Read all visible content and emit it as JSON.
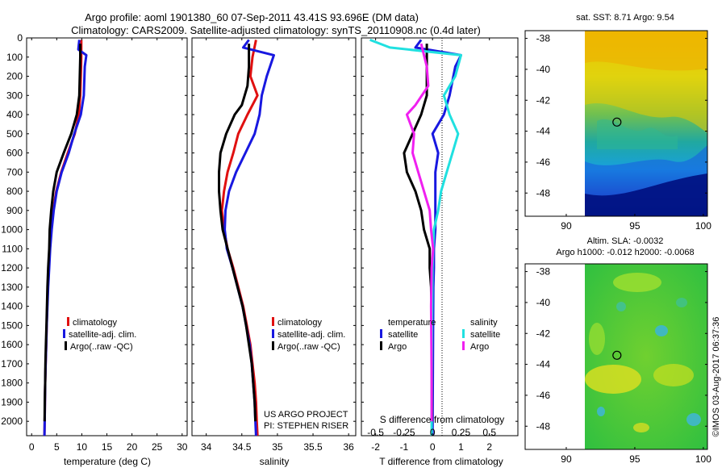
{
  "title_line1": "Argo profile: aoml 1901380_60 07-Sep-2011 43.41S 93.696E (DM data)",
  "title_line2": "Climatology: CARS2009. Satellite-adjusted climatology: synTS_20110908.nc (0.4d later)",
  "colors": {
    "clim": "#e01010",
    "sat": "#1818e0",
    "argo": "#000000",
    "sat_s": "#20e0e0",
    "argo_s": "#f020f0"
  },
  "legend": {
    "clim": "climatology",
    "sat": "satellite-adj. clim.",
    "argo": "Argo(..raw -QC)"
  },
  "diff_legend": {
    "temperature": "temperature",
    "salinity": "salinity",
    "sat": "satellite",
    "argo": "Argo",
    "sat_s": "satellite",
    "argo_s": "Argo"
  },
  "project": {
    "line1": "US ARGO PROJECT",
    "line2": "PI: STEPHEN RISER"
  },
  "s_diff_title": "S difference from climatology",
  "copyright": "©IMOS 03-Aug-2017 06:37:36",
  "map1_title": "sat. SST: 8.71  Argo: 9.54",
  "map2_title1": "Altim. SLA: -0.0032",
  "map2_title2": "Argo h1000: -0.012 h2000: -0.0068",
  "chart_data": [
    {
      "type": "line",
      "xlabel": "temperature (deg C)",
      "ylabel": "depth",
      "xlim": [
        -1,
        31
      ],
      "ylim": [
        2075,
        0
      ],
      "xticks": [
        0,
        5,
        10,
        15,
        20,
        25,
        30
      ],
      "xtick_labels": [
        "0",
        "5",
        "10",
        "15",
        "20",
        "25",
        "30"
      ],
      "yticks": [
        0,
        100,
        200,
        300,
        400,
        500,
        600,
        700,
        800,
        900,
        1000,
        1100,
        1200,
        1300,
        1400,
        1500,
        1600,
        1700,
        1800,
        1900,
        2000
      ],
      "series": [
        {
          "name": "climatology",
          "color": "clim",
          "points": [
            [
              9.9,
              10
            ],
            [
              9.9,
              100
            ],
            [
              9.8,
              200
            ],
            [
              9.7,
              300
            ],
            [
              9.4,
              400
            ],
            [
              8.6,
              500
            ],
            [
              7.2,
              600
            ],
            [
              5.9,
              700
            ],
            [
              4.9,
              800
            ],
            [
              4.3,
              900
            ],
            [
              3.9,
              1000
            ],
            [
              3.6,
              1100
            ],
            [
              3.4,
              1200
            ],
            [
              3.25,
              1300
            ],
            [
              3.1,
              1400
            ],
            [
              3.0,
              1500
            ],
            [
              2.9,
              1600
            ],
            [
              2.8,
              1700
            ],
            [
              2.7,
              1800
            ],
            [
              2.65,
              1900
            ],
            [
              2.6,
              2000
            ],
            [
              2.55,
              2075
            ]
          ]
        },
        {
          "name": "satellite-adj. clim.",
          "color": "sat",
          "points": [
            [
              9.5,
              10
            ],
            [
              9.3,
              60
            ],
            [
              10.9,
              90
            ],
            [
              10.6,
              150
            ],
            [
              10.4,
              300
            ],
            [
              9.8,
              400
            ],
            [
              8.5,
              500
            ],
            [
              7.4,
              600
            ],
            [
              6.0,
              700
            ],
            [
              5.0,
              800
            ],
            [
              4.4,
              900
            ],
            [
              4.0,
              1000
            ],
            [
              3.7,
              1100
            ],
            [
              3.5,
              1200
            ],
            [
              3.3,
              1300
            ],
            [
              3.15,
              1400
            ],
            [
              3.0,
              1500
            ],
            [
              2.9,
              1600
            ],
            [
              2.8,
              1700
            ],
            [
              2.7,
              1800
            ],
            [
              2.65,
              1900
            ],
            [
              2.6,
              2000
            ],
            [
              2.55,
              2075
            ]
          ]
        },
        {
          "name": "Argo(..raw -QC)",
          "color": "argo",
          "points": [
            [
              9.7,
              30
            ],
            [
              9.7,
              100
            ],
            [
              9.6,
              200
            ],
            [
              9.5,
              300
            ],
            [
              9.0,
              400
            ],
            [
              7.9,
              500
            ],
            [
              6.4,
              600
            ],
            [
              5.0,
              700
            ],
            [
              4.3,
              800
            ],
            [
              3.9,
              900
            ],
            [
              3.6,
              1000
            ],
            [
              3.5,
              1100
            ],
            [
              3.3,
              1200
            ],
            [
              3.15,
              1300
            ],
            [
              3.05,
              1400
            ],
            [
              2.95,
              1500
            ],
            [
              2.85,
              1600
            ],
            [
              2.75,
              1700
            ],
            [
              2.7,
              1800
            ],
            [
              2.62,
              1900
            ],
            [
              2.58,
              2000
            ]
          ]
        }
      ]
    },
    {
      "type": "line",
      "xlabel": "salinity",
      "xlim": [
        33.8,
        36.1
      ],
      "ylim": [
        2075,
        0
      ],
      "xticks": [
        34,
        34.5,
        35,
        35.5,
        36
      ],
      "xtick_labels": [
        "34",
        "34.5",
        "35",
        "35.5",
        "36"
      ],
      "series": [
        {
          "name": "climatology",
          "color": "clim",
          "points": [
            [
              34.7,
              10
            ],
            [
              34.65,
              100
            ],
            [
              34.62,
              200
            ],
            [
              34.72,
              300
            ],
            [
              34.58,
              400
            ],
            [
              34.45,
              500
            ],
            [
              34.38,
              600
            ],
            [
              34.3,
              700
            ],
            [
              34.25,
              800
            ],
            [
              34.22,
              900
            ],
            [
              34.25,
              1000
            ],
            [
              34.3,
              1100
            ],
            [
              34.38,
              1200
            ],
            [
              34.45,
              1300
            ],
            [
              34.52,
              1400
            ],
            [
              34.57,
              1500
            ],
            [
              34.62,
              1600
            ],
            [
              34.65,
              1700
            ],
            [
              34.68,
              1800
            ],
            [
              34.7,
              1900
            ],
            [
              34.71,
              2000
            ],
            [
              34.72,
              2075
            ]
          ]
        },
        {
          "name": "satellite-adj. clim.",
          "color": "sat",
          "points": [
            [
              34.6,
              10
            ],
            [
              34.52,
              50
            ],
            [
              34.95,
              90
            ],
            [
              34.85,
              200
            ],
            [
              34.78,
              300
            ],
            [
              34.75,
              400
            ],
            [
              34.68,
              500
            ],
            [
              34.55,
              600
            ],
            [
              34.42,
              700
            ],
            [
              34.32,
              800
            ],
            [
              34.27,
              900
            ],
            [
              34.26,
              1000
            ],
            [
              34.29,
              1100
            ],
            [
              34.37,
              1200
            ],
            [
              34.44,
              1300
            ],
            [
              34.51,
              1400
            ],
            [
              34.56,
              1500
            ],
            [
              34.61,
              1600
            ],
            [
              34.64,
              1700
            ],
            [
              34.66,
              1800
            ],
            [
              34.68,
              1900
            ],
            [
              34.69,
              2000
            ],
            [
              34.7,
              2075
            ]
          ]
        },
        {
          "name": "Argo(..raw -QC)",
          "color": "argo",
          "points": [
            [
              34.6,
              30
            ],
            [
              34.6,
              150
            ],
            [
              34.58,
              250
            ],
            [
              34.5,
              350
            ],
            [
              34.4,
              400
            ],
            [
              34.28,
              500
            ],
            [
              34.2,
              600
            ],
            [
              34.18,
              700
            ],
            [
              34.18,
              800
            ],
            [
              34.2,
              900
            ],
            [
              34.23,
              1000
            ],
            [
              34.3,
              1100
            ],
            [
              34.37,
              1200
            ],
            [
              34.44,
              1300
            ],
            [
              34.51,
              1400
            ],
            [
              34.56,
              1500
            ],
            [
              34.6,
              1600
            ],
            [
              34.64,
              1700
            ],
            [
              34.66,
              1800
            ],
            [
              34.68,
              1900
            ],
            [
              34.69,
              2000
            ]
          ]
        }
      ]
    },
    {
      "type": "line",
      "xlabel": "T difference from climatology",
      "xlim": [
        -2.5,
        3.0
      ],
      "ylim": [
        2075,
        0
      ],
      "xticks": [
        -2,
        -1,
        0,
        1,
        2
      ],
      "xtick_labels": [
        "-2",
        "-1",
        "0",
        "1",
        "2"
      ],
      "s_xtick_labels": [
        "-0.5",
        "-0.25",
        "0",
        "0.25",
        "0.5"
      ],
      "s_xtick_positions": [
        -2,
        -1,
        0,
        1,
        2
      ],
      "series": [
        {
          "name": "temperature satellite",
          "color": "sat",
          "points": [
            [
              -0.4,
              10
            ],
            [
              -0.6,
              50
            ],
            [
              1.0,
              90
            ],
            [
              0.8,
              150
            ],
            [
              0.6,
              300
            ],
            [
              0.4,
              400
            ],
            [
              0.0,
              500
            ],
            [
              0.2,
              600
            ],
            [
              0.1,
              700
            ],
            [
              0.1,
              800
            ],
            [
              0.1,
              900
            ],
            [
              0.1,
              1000
            ],
            [
              0.05,
              1100
            ],
            [
              0.05,
              1200
            ],
            [
              0.03,
              1300
            ],
            [
              0.02,
              1500
            ],
            [
              0.0,
              2075
            ]
          ]
        },
        {
          "name": "temperature Argo",
          "color": "argo",
          "points": [
            [
              -0.2,
              30
            ],
            [
              -0.2,
              100
            ],
            [
              -0.2,
              200
            ],
            [
              -0.2,
              300
            ],
            [
              -0.4,
              400
            ],
            [
              -0.7,
              500
            ],
            [
              -1.0,
              600
            ],
            [
              -0.9,
              700
            ],
            [
              -0.6,
              800
            ],
            [
              -0.4,
              900
            ],
            [
              -0.3,
              1000
            ],
            [
              -0.1,
              1100
            ],
            [
              -0.1,
              1200
            ],
            [
              -0.05,
              1300
            ],
            [
              -0.03,
              1500
            ],
            [
              -0.02,
              2000
            ]
          ]
        },
        {
          "name": "salinity satellite",
          "color": "sat_s",
          "points": [
            [
              -2.2,
              10
            ],
            [
              -1.5,
              50
            ],
            [
              1.0,
              90
            ],
            [
              0.8,
              200
            ],
            [
              0.4,
              300
            ],
            [
              0.6,
              400
            ],
            [
              0.9,
              500
            ],
            [
              0.7,
              600
            ],
            [
              0.5,
              700
            ],
            [
              0.3,
              800
            ],
            [
              0.2,
              900
            ],
            [
              0.05,
              1000
            ],
            [
              0.0,
              1200
            ],
            [
              -0.02,
              1500
            ],
            [
              -0.03,
              2000
            ],
            [
              -0.03,
              2075
            ]
          ]
        },
        {
          "name": "salinity Argo",
          "color": "argo_s",
          "points": [
            [
              -0.4,
              30
            ],
            [
              -0.2,
              150
            ],
            [
              -0.15,
              250
            ],
            [
              -0.6,
              350
            ],
            [
              -0.9,
              400
            ],
            [
              -0.65,
              500
            ],
            [
              -0.7,
              600
            ],
            [
              -0.5,
              700
            ],
            [
              -0.3,
              800
            ],
            [
              -0.1,
              900
            ],
            [
              -0.05,
              1000
            ],
            [
              0.02,
              1100
            ],
            [
              -0.03,
              1200
            ],
            [
              -0.05,
              1400
            ],
            [
              -0.04,
              1600
            ],
            [
              -0.03,
              1800
            ],
            [
              -0.03,
              2000
            ]
          ]
        }
      ]
    },
    {
      "type": "heatmap",
      "title": "sat. SST: 8.71  Argo: 9.54",
      "xlim": [
        87,
        100.3
      ],
      "ylim": [
        -49.5,
        -37.5
      ],
      "xticks": [
        90,
        95,
        100
      ],
      "yticks": [
        -38,
        -40,
        -42,
        -44,
        -46,
        -48
      ],
      "argo_position": [
        93.696,
        -43.41
      ]
    },
    {
      "type": "heatmap",
      "title": "Altim. SLA: -0.0032",
      "xlim": [
        87,
        100.3
      ],
      "ylim": [
        -49.5,
        -37.5
      ],
      "xticks": [
        90,
        95,
        100
      ],
      "yticks": [
        -38,
        -40,
        -42,
        -44,
        -46,
        -48
      ],
      "argo_position": [
        93.696,
        -43.41
      ]
    }
  ]
}
